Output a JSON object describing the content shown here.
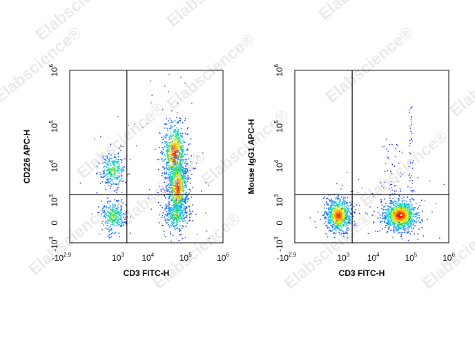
{
  "watermark": {
    "text": "Elabscience",
    "mark": "®"
  },
  "chart_data": [
    {
      "type": "scatter",
      "subtype": "flow-cytometry-pseudocolor-density",
      "xlabel": "CD3 FITC-H",
      "ylabel": "CD226 APC-H",
      "x_scale": "biexponential",
      "y_scale": "biexponential",
      "xlim": [
        "-10^2.9",
        "10^6"
      ],
      "ylim": [
        "-10^3",
        "10^6"
      ],
      "x_ticks": [
        {
          "base": "-10",
          "exp": "2.9"
        },
        {
          "base": "10",
          "exp": "3"
        },
        {
          "base": "10",
          "exp": "4"
        },
        {
          "base": "10",
          "exp": "5"
        },
        {
          "base": "10",
          "exp": "6"
        }
      ],
      "y_ticks": [
        {
          "base": "-10",
          "exp": "3"
        },
        {
          "base": "0",
          "exp": ""
        },
        {
          "base": "10",
          "exp": "3"
        },
        {
          "base": "10",
          "exp": "4"
        },
        {
          "base": "10",
          "exp": "5"
        },
        {
          "base": "10",
          "exp": "6"
        }
      ],
      "gate": {
        "x": 2000,
        "y": 1500
      },
      "populations": [
        {
          "x": 500,
          "y": 8000,
          "density": "medium"
        },
        {
          "x": 500,
          "y": 80,
          "density": "medium"
        },
        {
          "x": 50000,
          "y": 20000,
          "density": "high"
        },
        {
          "x": 60000,
          "y": 2500,
          "density": "high"
        },
        {
          "x": 55000,
          "y": 100,
          "density": "medium"
        }
      ],
      "grid": false,
      "legend": "none"
    },
    {
      "type": "scatter",
      "subtype": "flow-cytometry-pseudocolor-density",
      "xlabel": "CD3 FITC-H",
      "ylabel": "Mouse IgG1 APC-H",
      "x_scale": "biexponential",
      "y_scale": "biexponential",
      "xlim": [
        "-10^2.9",
        "10^6"
      ],
      "ylim": [
        "-10^3",
        "10^6"
      ],
      "x_ticks": [
        {
          "base": "-10",
          "exp": "2.9"
        },
        {
          "base": "10",
          "exp": "3"
        },
        {
          "base": "10",
          "exp": "4"
        },
        {
          "base": "10",
          "exp": "5"
        },
        {
          "base": "10",
          "exp": "6"
        }
      ],
      "y_ticks": [
        {
          "base": "-10",
          "exp": "3"
        },
        {
          "base": "0",
          "exp": ""
        },
        {
          "base": "10",
          "exp": "3"
        },
        {
          "base": "10",
          "exp": "4"
        },
        {
          "base": "10",
          "exp": "5"
        },
        {
          "base": "10",
          "exp": "6"
        }
      ],
      "gate": {
        "x": 2000,
        "y": 1500
      },
      "populations": [
        {
          "x": 500,
          "y": 100,
          "density": "high"
        },
        {
          "x": 50000,
          "y": 100,
          "density": "very-high"
        }
      ],
      "grid": false,
      "legend": "none"
    }
  ]
}
